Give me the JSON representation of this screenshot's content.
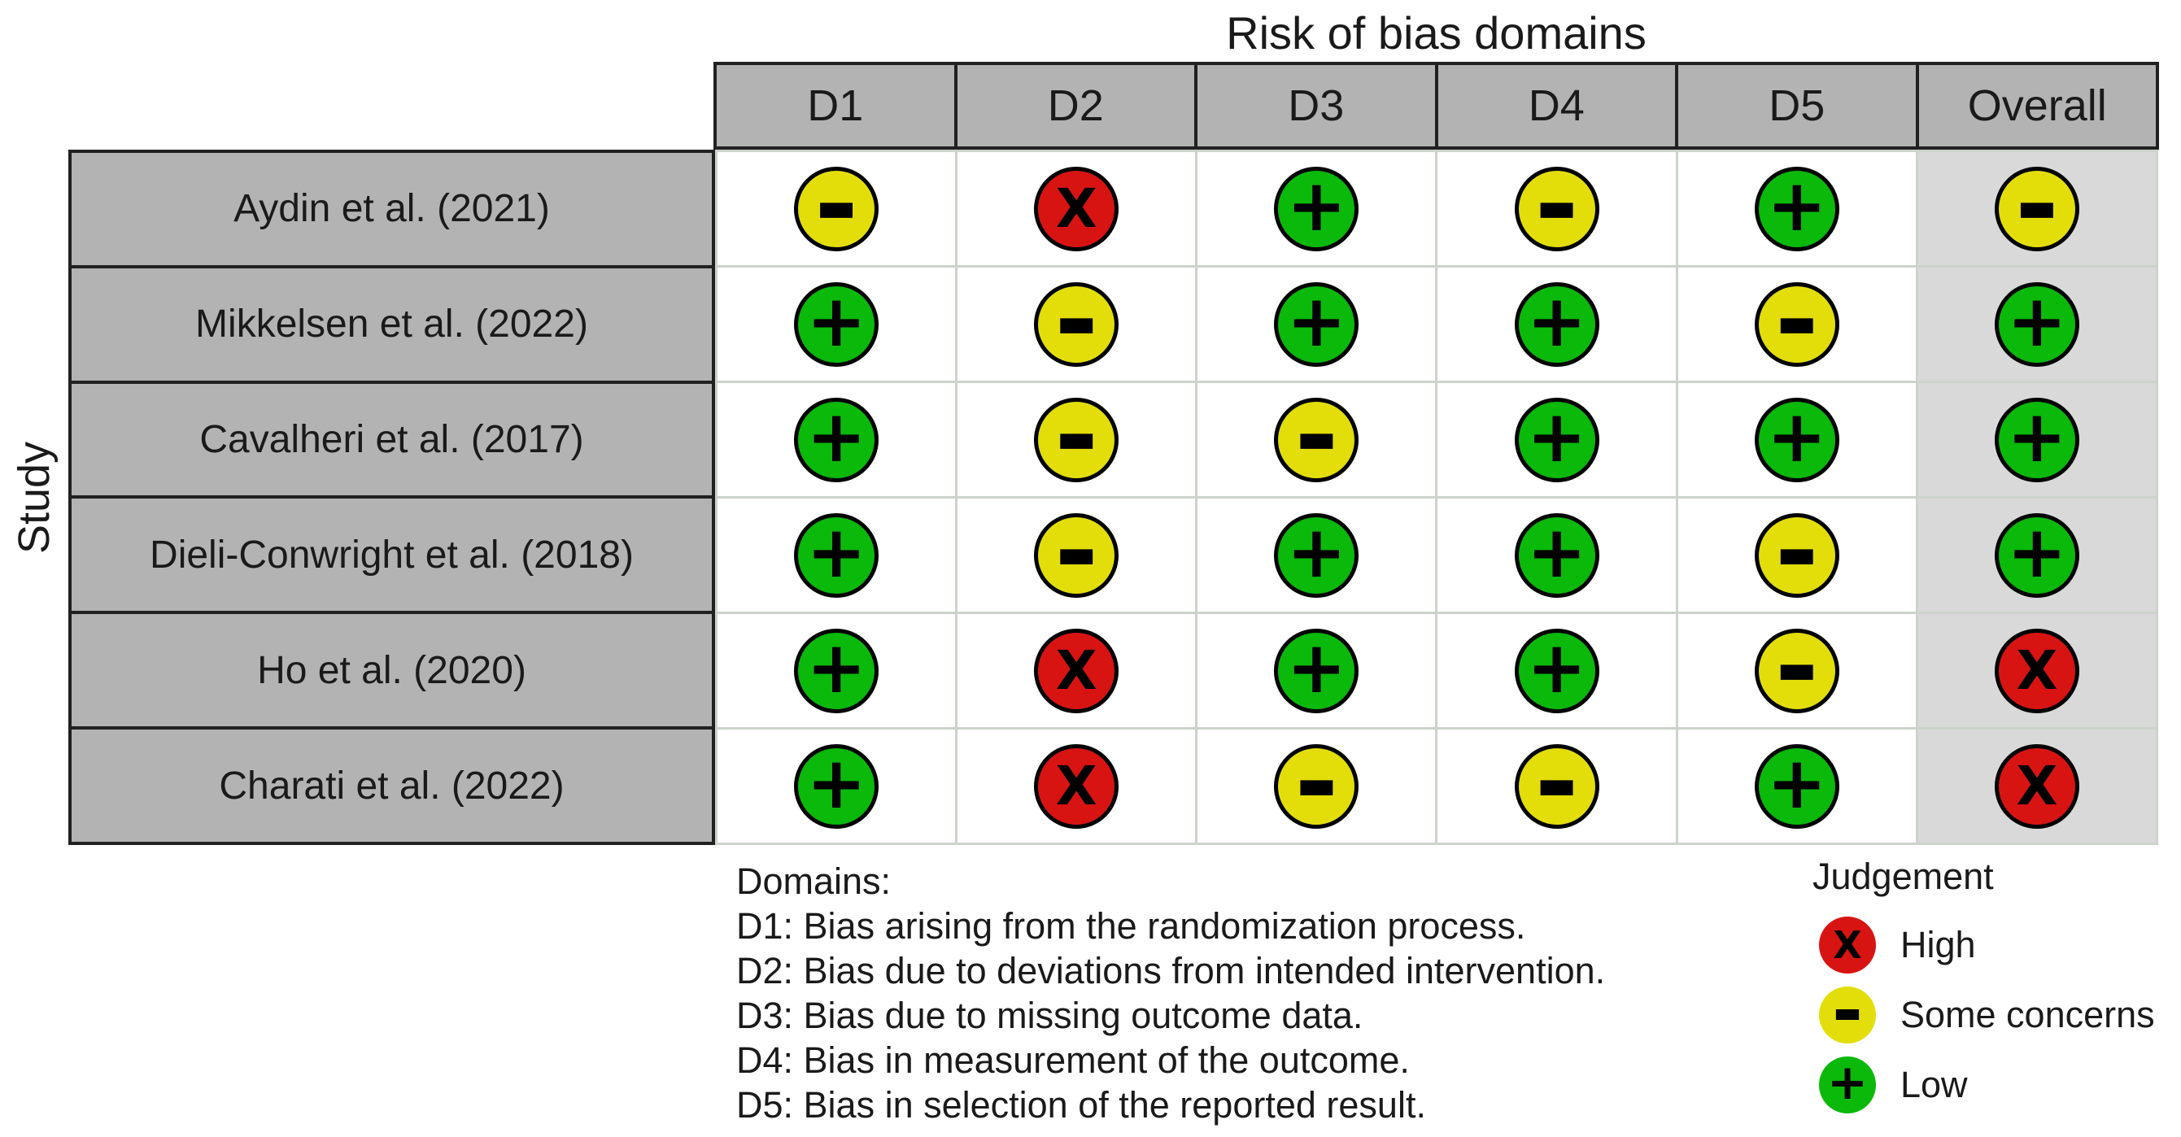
{
  "chart_data": {
    "type": "table",
    "title": "Risk of bias domains",
    "row_axis_label": "Study",
    "columns": [
      "D1",
      "D2",
      "D3",
      "D4",
      "D5",
      "Overall"
    ],
    "rows": [
      {
        "study": "Aydin et al. (2021)",
        "judgements": [
          "some_concerns",
          "high",
          "low",
          "some_concerns",
          "low",
          "some_concerns"
        ]
      },
      {
        "study": "Mikkelsen et al. (2022)",
        "judgements": [
          "low",
          "some_concerns",
          "low",
          "low",
          "some_concerns",
          "low"
        ]
      },
      {
        "study": "Cavalheri et al. (2017)",
        "judgements": [
          "low",
          "some_concerns",
          "some_concerns",
          "low",
          "low",
          "low"
        ]
      },
      {
        "study": "Dieli-Conwright et al. (2018)",
        "judgements": [
          "low",
          "some_concerns",
          "low",
          "low",
          "some_concerns",
          "low"
        ]
      },
      {
        "study": "Ho et al. (2020)",
        "judgements": [
          "low",
          "high",
          "low",
          "low",
          "some_concerns",
          "high"
        ]
      },
      {
        "study": "Charati et al. (2022)",
        "judgements": [
          "low",
          "high",
          "some_concerns",
          "some_concerns",
          "low",
          "high"
        ]
      }
    ],
    "judgement_key": {
      "high": {
        "label": "High",
        "symbol": "X",
        "color": "#d81412"
      },
      "some_concerns": {
        "label": "Some concerns",
        "symbol": "-",
        "color": "#e3de0a"
      },
      "low": {
        "label": "Low",
        "symbol": "+",
        "color": "#0ab90a"
      }
    },
    "legend_position": "bottom"
  },
  "domains_legend": {
    "heading": "Domains:",
    "items": [
      "D1: Bias arising from the randomization process.",
      "D2: Bias due to deviations from intended intervention.",
      "D3: Bias due to missing outcome data.",
      "D4: Bias in measurement of the outcome.",
      "D5: Bias in selection of the reported result."
    ]
  },
  "judgement_legend": {
    "heading": "Judgement",
    "items": [
      {
        "judgement": "high",
        "label": "High"
      },
      {
        "judgement": "some_concerns",
        "label": "Some concerns"
      },
      {
        "judgement": "low",
        "label": "Low"
      }
    ]
  },
  "colors": {
    "high": "#d81412",
    "some_concerns": "#e3de0a",
    "low": "#0ab90a",
    "header_bg": "#b3b3b3",
    "study_cell_bg": "#b3b3b3",
    "overall_cell_bg": "#d9d9d9",
    "dark_border": "#212121",
    "light_grid": "#ccd3cb"
  }
}
